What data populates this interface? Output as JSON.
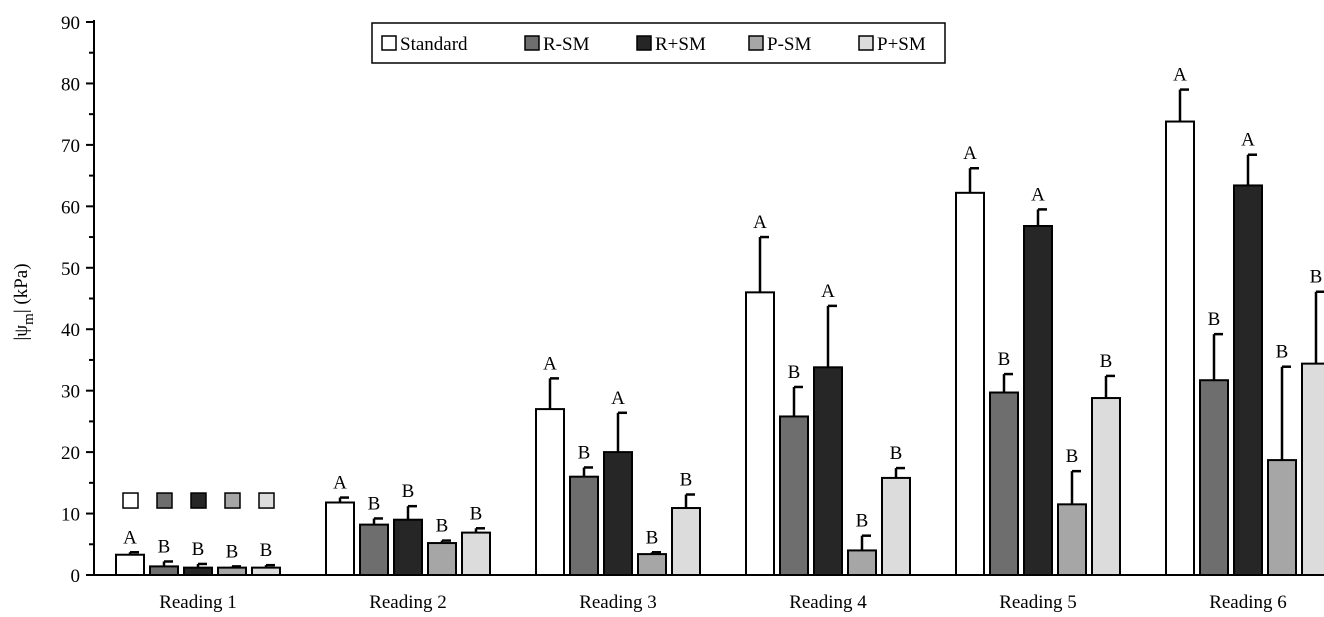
{
  "chart_data": {
    "type": "bar",
    "title": "",
    "xlabel": "",
    "ylabel_main": "|ψ",
    "ylabel_sub": "m",
    "ylabel_end": "| (kPa)",
    "ylim": [
      0,
      90
    ],
    "yticks": [
      "0",
      "10",
      "20",
      "30",
      "40",
      "50",
      "60",
      "70",
      "80",
      "90"
    ],
    "categories": [
      "Reading 1",
      "Reading 2",
      "Reading 3",
      "Reading 4",
      "Reading 5",
      "Reading 6"
    ],
    "legend_position": "top-center",
    "series": [
      {
        "name": "Standard",
        "color": "#ffffff",
        "values": [
          3.3,
          11.8,
          27.0,
          46.0,
          62.2,
          73.8
        ],
        "errors": [
          0.4,
          0.8,
          5.0,
          9.0,
          4.0,
          5.2
        ],
        "letters": [
          "A",
          "A",
          "A",
          "A",
          "A",
          "A"
        ]
      },
      {
        "name": "R-SM",
        "color": "#6e6e6e",
        "values": [
          1.4,
          8.2,
          16.0,
          25.8,
          29.7,
          31.7
        ],
        "errors": [
          0.8,
          1.0,
          1.5,
          4.8,
          3.0,
          7.5
        ],
        "letters": [
          "B",
          "B",
          "B",
          "B",
          "B",
          "B"
        ]
      },
      {
        "name": "R+SM",
        "color": "#262626",
        "values": [
          1.2,
          9.0,
          20.0,
          33.8,
          56.8,
          63.4
        ],
        "errors": [
          0.6,
          2.2,
          6.4,
          10.0,
          2.7,
          5.0
        ],
        "letters": [
          "B",
          "B",
          "A",
          "A",
          "A",
          "A"
        ]
      },
      {
        "name": "P-SM",
        "color": "#a6a6a6",
        "values": [
          1.2,
          5.2,
          3.4,
          4.0,
          11.5,
          18.7
        ],
        "errors": [
          0.2,
          0.4,
          0.3,
          2.4,
          5.4,
          15.2
        ],
        "letters": [
          "B",
          "B",
          "B",
          "B",
          "B",
          "B"
        ]
      },
      {
        "name": "P+SM",
        "color": "#dcdcdc",
        "values": [
          1.2,
          6.9,
          10.9,
          15.8,
          28.8,
          34.4
        ],
        "errors": [
          0.4,
          0.7,
          2.2,
          1.6,
          3.6,
          11.7
        ],
        "letters": [
          "B",
          "B",
          "B",
          "B",
          "B",
          "B"
        ]
      }
    ],
    "annotation_squares_group": "Reading 1",
    "annotation_squares_value": 12.2
  }
}
